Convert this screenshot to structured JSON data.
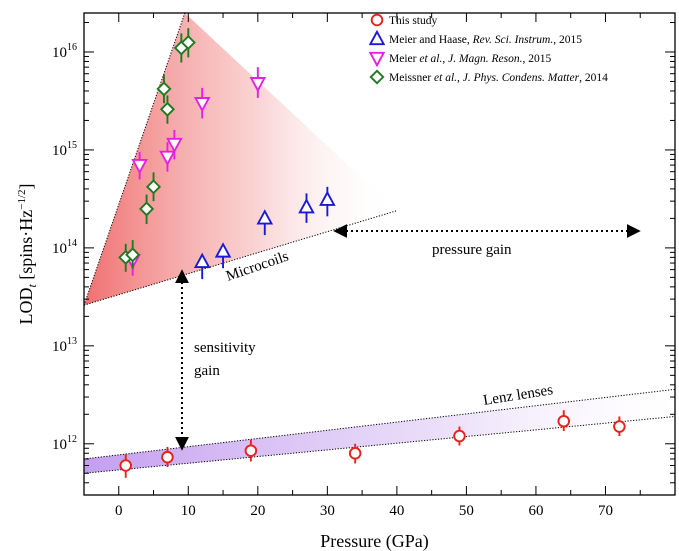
{
  "chart_data": {
    "type": "scatter",
    "xlabel": "Pressure (GPa)",
    "ylabel": "LODₜ [spins·Hz⁻¹ᐟ²]",
    "ylabel_main": "LOD",
    "ylabel_sub": "t",
    "ylabel_units_pre": " [spins·Hz",
    "ylabel_units_sup": "−1/2",
    "ylabel_units_post": "]",
    "xlim": [
      -5,
      80
    ],
    "ylim": [
      300000000000.0,
      2.5e+16
    ],
    "yscale": "log",
    "x_ticks": [
      0,
      10,
      20,
      30,
      40,
      50,
      60,
      70
    ],
    "x_tick_labels": [
      "0",
      "10",
      "20",
      "30",
      "40",
      "50",
      "60",
      "70"
    ],
    "y_ticks": [
      1000000000000.0,
      10000000000000.0,
      100000000000000.0,
      1000000000000000.0,
      1e+16
    ],
    "y_tick_labels": [
      {
        "base": "10",
        "exp": "12"
      },
      {
        "base": "10",
        "exp": "13"
      },
      {
        "base": "10",
        "exp": "14"
      },
      {
        "base": "10",
        "exp": "15"
      },
      {
        "base": "10",
        "exp": "16"
      }
    ],
    "legend_position": "top-right",
    "series": [
      {
        "name": "This study",
        "legend_parts": [
          {
            "t": "This study",
            "i": false
          }
        ],
        "marker": "circle",
        "color": "#e8211b",
        "points": [
          {
            "x": 1,
            "y": 600000000000.0,
            "lo": 450000000000.0,
            "hi": 780000000000.0
          },
          {
            "x": 7,
            "y": 730000000000.0,
            "lo": 580000000000.0,
            "hi": 930000000000.0
          },
          {
            "x": 19,
            "y": 850000000000.0,
            "lo": 660000000000.0,
            "hi": 1100000000000.0
          },
          {
            "x": 34,
            "y": 800000000000.0,
            "lo": 630000000000.0,
            "hi": 1000000000000.0
          },
          {
            "x": 49,
            "y": 1200000000000.0,
            "lo": 960000000000.0,
            "hi": 1500000000000.0
          },
          {
            "x": 64,
            "y": 1700000000000.0,
            "lo": 1350000000000.0,
            "hi": 2200000000000.0
          },
          {
            "x": 72,
            "y": 1500000000000.0,
            "lo": 1200000000000.0,
            "hi": 1900000000000.0
          }
        ]
      },
      {
        "name": "Meier and Haase, Rev. Sci. Instrum., 2015",
        "legend_parts": [
          {
            "t": "Meier and Haase, ",
            "i": false
          },
          {
            "t": "Rev. Sci. Instrum.",
            "i": true
          },
          {
            "t": ", 2015",
            "i": false
          }
        ],
        "marker": "triangle-up",
        "color": "#1a1ad6",
        "points": [
          {
            "x": 12,
            "y": 72000000000000.0,
            "lo": 48000000000000.0,
            "hi": 72000000000000.0
          },
          {
            "x": 15,
            "y": 92000000000000.0,
            "lo": 62000000000000.0,
            "hi": 92000000000000.0
          },
          {
            "x": 21,
            "y": 200000000000000.0,
            "lo": 135000000000000.0,
            "hi": 200000000000000.0
          },
          {
            "x": 27,
            "y": 260000000000000.0,
            "lo": 180000000000000.0,
            "hi": 360000000000000.0
          },
          {
            "x": 30,
            "y": 310000000000000.0,
            "lo": 210000000000000.0,
            "hi": 420000000000000.0
          }
        ]
      },
      {
        "name": "Meier et al., J. Magn. Reson., 2015",
        "legend_parts": [
          {
            "t": "Meier ",
            "i": false
          },
          {
            "t": "et al.",
            "i": true
          },
          {
            "t": ", ",
            "i": false
          },
          {
            "t": "J. Magn. Reson.",
            "i": true
          },
          {
            "t": ", 2015",
            "i": false
          }
        ],
        "marker": "triangle-down",
        "color": "#e61ee6",
        "points": [
          {
            "x": 2,
            "y": 75000000000000.0,
            "lo": 52000000000000.0,
            "hi": 100000000000000.0
          },
          {
            "x": 3,
            "y": 700000000000000.0,
            "lo": 500000000000000.0,
            "hi": 950000000000000.0
          },
          {
            "x": 7,
            "y": 850000000000000.0,
            "lo": 600000000000000.0,
            "hi": 1200000000000000.0
          },
          {
            "x": 8,
            "y": 1150000000000000.0,
            "lo": 800000000000000.0,
            "hi": 1600000000000000.0
          },
          {
            "x": 12,
            "y": 3000000000000000.0,
            "lo": 2100000000000000.0,
            "hi": 4300000000000000.0
          },
          {
            "x": 20,
            "y": 4800000000000000.0,
            "lo": 3400000000000000.0,
            "hi": 7000000000000000.0
          }
        ]
      },
      {
        "name": "Meissner et al., J. Phys. Condens. Matter, 2014",
        "legend_parts": [
          {
            "t": "Meissner ",
            "i": false
          },
          {
            "t": "et al.",
            "i": true
          },
          {
            "t": ", ",
            "i": false
          },
          {
            "t": "J. Phys. Condens. Matter",
            "i": true
          },
          {
            "t": ", 2014",
            "i": false
          }
        ],
        "marker": "diamond",
        "color": "#1e7a1e",
        "points": [
          {
            "x": 1,
            "y": 80000000000000.0,
            "lo": 57000000000000.0,
            "hi": 110000000000000.0
          },
          {
            "x": 2,
            "y": 85000000000000.0,
            "lo": 61000000000000.0,
            "hi": 120000000000000.0
          },
          {
            "x": 4,
            "y": 250000000000000.0,
            "lo": 175000000000000.0,
            "hi": 350000000000000.0
          },
          {
            "x": 5,
            "y": 420000000000000.0,
            "lo": 300000000000000.0,
            "hi": 590000000000000.0
          },
          {
            "x": 6.5,
            "y": 4200000000000000.0,
            "lo": 3000000000000000.0,
            "hi": 5900000000000000.0
          },
          {
            "x": 7,
            "y": 2600000000000000.0,
            "lo": 1850000000000000.0,
            "hi": 3600000000000000.0
          },
          {
            "x": 9,
            "y": 1.1e+16,
            "lo": 7800000000000000.0,
            "hi": 1.55e+16
          },
          {
            "x": 10,
            "y": 1.25e+16,
            "lo": 8800000000000000.0,
            "hi": 1.75e+16
          }
        ]
      }
    ],
    "regions": [
      {
        "name": "Microcoils",
        "color": "#f08080"
      },
      {
        "name": "Lenz lenses",
        "color": "#c9a8f0"
      }
    ],
    "annotations": {
      "microcoils": "Microcoils",
      "lenz": "Lenz lenses",
      "pressure_gain": "pressure gain",
      "sensitivity_1": "sensitivity",
      "sensitivity_2": "gain"
    }
  }
}
